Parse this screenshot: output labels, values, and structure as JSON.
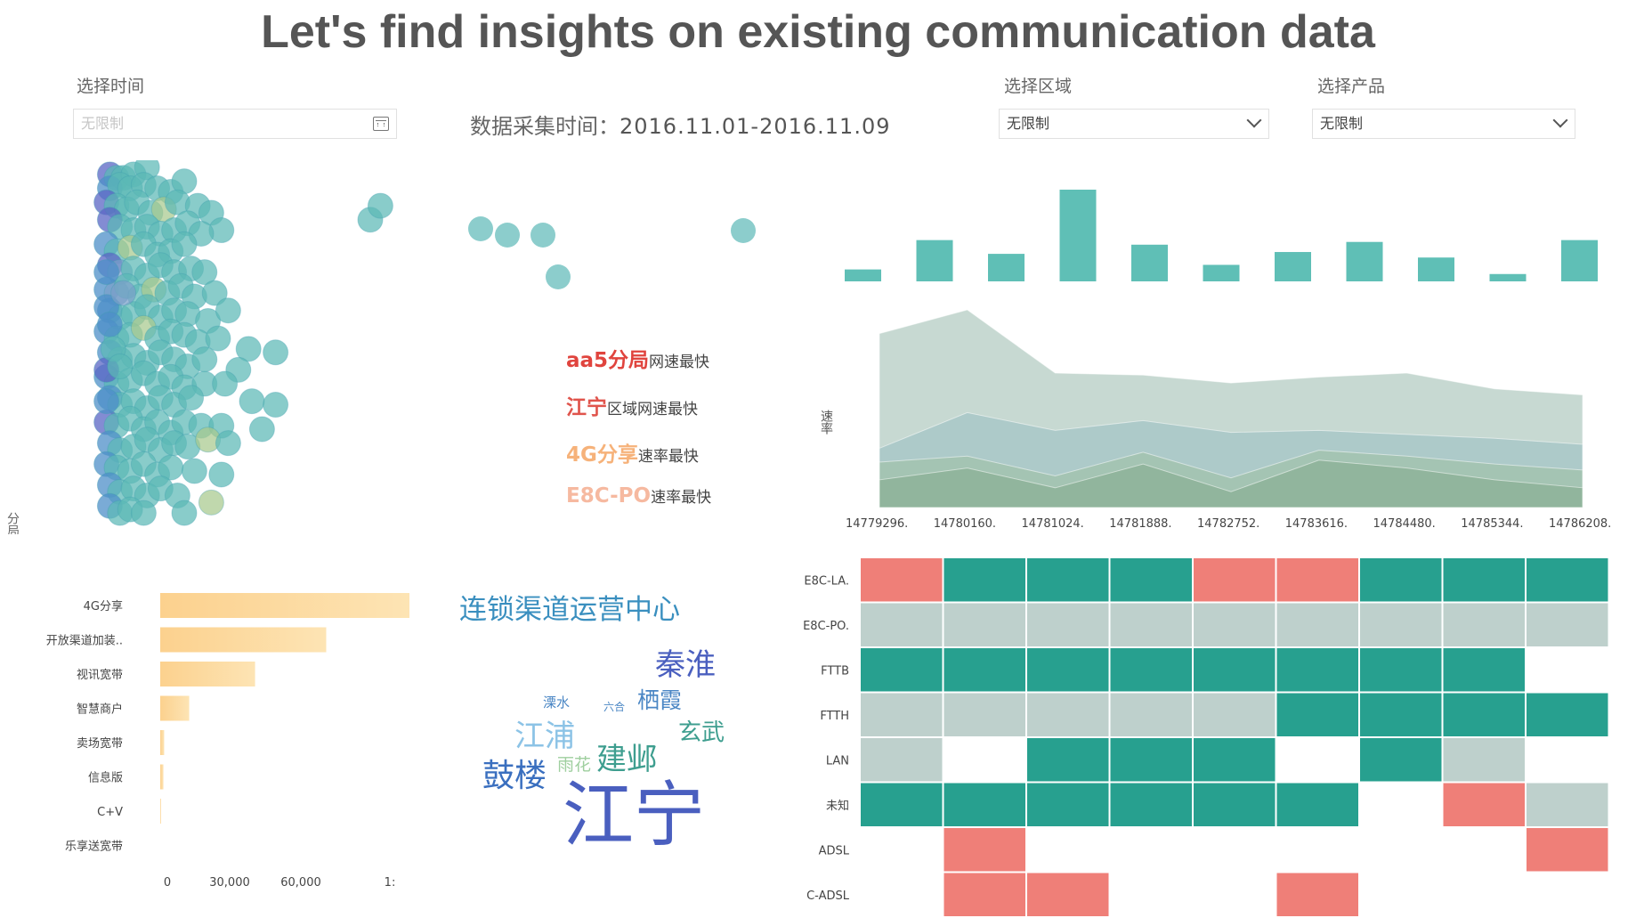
{
  "title": "Let's find insights on existing communication data",
  "controls": {
    "time": {
      "label": "选择时间",
      "placeholder": "无限制"
    },
    "collect_prefix": "数据采集时间：",
    "collect_range": "2016.11.01-2016.11.09",
    "region": {
      "label": "选择区域",
      "value": "无限制"
    },
    "product": {
      "label": "选择产品",
      "value": "无限制"
    }
  },
  "colors": {
    "teal": "#5bb8b6",
    "teal_dark": "#2a9d8f",
    "gray_green": "#c0d3cf",
    "salmon": "#ef7f78",
    "orange_bar": "#fbd59a"
  },
  "insights": [
    {
      "highlight": "aa5分局",
      "text": "网速最快",
      "color": "#e0443e"
    },
    {
      "highlight": "江宁",
      "text": "区域网速最快",
      "color": "#e0544c"
    },
    {
      "highlight": "4G分享",
      "text": "速率最快",
      "color": "#f6b27a"
    },
    {
      "highlight": "E8C-PO",
      "text": "速率最快",
      "color": "#f6b9a0"
    }
  ],
  "chart_data": [
    {
      "type": "scatter",
      "ylabel": "分局",
      "points": [
        [
          0.03,
          0.02
        ],
        [
          0.05,
          0.03
        ],
        [
          0.07,
          0.03
        ],
        [
          0.1,
          0.02
        ],
        [
          0.14,
          0.0
        ],
        [
          0.03,
          0.06
        ],
        [
          0.06,
          0.05
        ],
        [
          0.09,
          0.06
        ],
        [
          0.13,
          0.05
        ],
        [
          0.17,
          0.06
        ],
        [
          0.21,
          0.07
        ],
        [
          0.25,
          0.04
        ],
        [
          0.02,
          0.1
        ],
        [
          0.05,
          0.11
        ],
        [
          0.08,
          0.12
        ],
        [
          0.11,
          0.1
        ],
        [
          0.15,
          0.13
        ],
        [
          0.19,
          0.12
        ],
        [
          0.23,
          0.1
        ],
        [
          0.29,
          0.11
        ],
        [
          0.33,
          0.13
        ],
        [
          0.36,
          0.18
        ],
        [
          0.8,
          0.15
        ],
        [
          0.83,
          0.11
        ],
        [
          0.03,
          0.15
        ],
        [
          0.06,
          0.17
        ],
        [
          0.1,
          0.18
        ],
        [
          0.14,
          0.17
        ],
        [
          0.18,
          0.19
        ],
        [
          0.22,
          0.18
        ],
        [
          0.26,
          0.16
        ],
        [
          0.3,
          0.19
        ],
        [
          0.02,
          0.22
        ],
        [
          0.05,
          0.24
        ],
        [
          0.09,
          0.23
        ],
        [
          0.13,
          0.22
        ],
        [
          0.17,
          0.25
        ],
        [
          0.21,
          0.24
        ],
        [
          0.25,
          0.22
        ],
        [
          0.03,
          0.28
        ],
        [
          0.06,
          0.3
        ],
        [
          0.1,
          0.29
        ],
        [
          0.14,
          0.31
        ],
        [
          0.18,
          0.28
        ],
        [
          0.22,
          0.3
        ],
        [
          0.27,
          0.29
        ],
        [
          0.31,
          0.3
        ],
        [
          0.02,
          0.35
        ],
        [
          0.05,
          0.36
        ],
        [
          0.08,
          0.34
        ],
        [
          0.12,
          0.37
        ],
        [
          0.16,
          0.35
        ],
        [
          0.2,
          0.36
        ],
        [
          0.24,
          0.34
        ],
        [
          0.28,
          0.37
        ],
        [
          0.34,
          0.36
        ],
        [
          0.03,
          0.41
        ],
        [
          0.06,
          0.43
        ],
        [
          0.1,
          0.42
        ],
        [
          0.14,
          0.4
        ],
        [
          0.18,
          0.43
        ],
        [
          0.22,
          0.41
        ],
        [
          0.26,
          0.42
        ],
        [
          0.32,
          0.44
        ],
        [
          0.38,
          0.41
        ],
        [
          0.02,
          0.47
        ],
        [
          0.05,
          0.49
        ],
        [
          0.09,
          0.48
        ],
        [
          0.13,
          0.46
        ],
        [
          0.17,
          0.49
        ],
        [
          0.21,
          0.47
        ],
        [
          0.25,
          0.48
        ],
        [
          0.29,
          0.5
        ],
        [
          0.35,
          0.49
        ],
        [
          0.44,
          0.52
        ],
        [
          0.52,
          0.53
        ],
        [
          0.03,
          0.53
        ],
        [
          0.06,
          0.55
        ],
        [
          0.1,
          0.54
        ],
        [
          0.14,
          0.56
        ],
        [
          0.18,
          0.53
        ],
        [
          0.22,
          0.55
        ],
        [
          0.26,
          0.57
        ],
        [
          0.31,
          0.55
        ],
        [
          0.41,
          0.58
        ],
        [
          0.02,
          0.6
        ],
        [
          0.05,
          0.62
        ],
        [
          0.09,
          0.61
        ],
        [
          0.13,
          0.59
        ],
        [
          0.17,
          0.62
        ],
        [
          0.21,
          0.6
        ],
        [
          0.25,
          0.63
        ],
        [
          0.31,
          0.62
        ],
        [
          0.37,
          0.62
        ],
        [
          0.03,
          0.66
        ],
        [
          0.06,
          0.68
        ],
        [
          0.1,
          0.67
        ],
        [
          0.14,
          0.69
        ],
        [
          0.18,
          0.66
        ],
        [
          0.22,
          0.68
        ],
        [
          0.27,
          0.66
        ],
        [
          0.45,
          0.67
        ],
        [
          0.02,
          0.73
        ],
        [
          0.05,
          0.74
        ],
        [
          0.09,
          0.72
        ],
        [
          0.13,
          0.75
        ],
        [
          0.17,
          0.73
        ],
        [
          0.21,
          0.76
        ],
        [
          0.25,
          0.73
        ],
        [
          0.3,
          0.74
        ],
        [
          0.36,
          0.74
        ],
        [
          0.52,
          0.68
        ],
        [
          0.03,
          0.79
        ],
        [
          0.06,
          0.81
        ],
        [
          0.1,
          0.8
        ],
        [
          0.14,
          0.78
        ],
        [
          0.18,
          0.81
        ],
        [
          0.22,
          0.79
        ],
        [
          0.26,
          0.8
        ],
        [
          0.32,
          0.78
        ],
        [
          0.38,
          0.79
        ],
        [
          0.48,
          0.75
        ],
        [
          0.02,
          0.85
        ],
        [
          0.05,
          0.86
        ],
        [
          0.09,
          0.87
        ],
        [
          0.13,
          0.85
        ],
        [
          0.17,
          0.88
        ],
        [
          0.21,
          0.86
        ],
        [
          0.28,
          0.87
        ],
        [
          0.36,
          0.88
        ],
        [
          0.03,
          0.91
        ],
        [
          0.06,
          0.93
        ],
        [
          0.1,
          0.92
        ],
        [
          0.14,
          0.94
        ],
        [
          0.18,
          0.92
        ],
        [
          0.23,
          0.94
        ],
        [
          0.33,
          0.96
        ],
        [
          0.03,
          0.97
        ],
        [
          0.06,
          0.99
        ],
        [
          0.09,
          0.98
        ],
        [
          0.13,
          0.99
        ],
        [
          0.25,
          0.99
        ],
        [
          0.02,
          0.3
        ],
        [
          0.02,
          0.4
        ],
        [
          0.02,
          0.58
        ],
        [
          0.02,
          0.67
        ],
        [
          0.03,
          0.45
        ],
        [
          0.04,
          0.52
        ],
        [
          0.07,
          0.36
        ],
        [
          0.06,
          0.57
        ]
      ],
      "points_mid": [
        [
          0.12,
          0.45
        ],
        [
          0.88,
          0.15
        ],
        [
          1.0,
          0.05
        ],
        [
          0.3,
          0.3
        ],
        [
          0.74,
          0.3
        ]
      ]
    },
    {
      "type": "bar",
      "values": [
        13,
        45,
        30,
        100,
        40,
        18,
        32,
        43,
        26,
        8,
        45
      ]
    },
    {
      "type": "area",
      "ylabel": "速率",
      "x_ticks": [
        "14779296.",
        "14780160.",
        "14781024.",
        "14781888.",
        "14782752.",
        "14783616.",
        "14784480.",
        "14785344.",
        "14786208."
      ],
      "ylim": [
        0,
        100
      ],
      "series": [
        {
          "values": [
            88,
            100,
            68,
            67,
            63,
            66,
            68,
            60,
            57
          ],
          "color": "#c1d5cd"
        },
        {
          "values": [
            30,
            48,
            39,
            44,
            38,
            39,
            37,
            35,
            32
          ],
          "color": "#9bbfc3"
        },
        {
          "values": [
            23,
            26,
            16,
            28,
            15,
            29,
            26,
            22,
            19
          ],
          "color": "#9fbfa5"
        },
        {
          "values": [
            14,
            20,
            10,
            22,
            8,
            24,
            20,
            14,
            10
          ],
          "color": "#85ac8d"
        }
      ]
    },
    {
      "type": "bar",
      "categories": [
        "4G分享",
        "开放渠道加装..",
        "视讯宽带",
        "智慧商户",
        "卖场宽带",
        "信息版",
        "C+V",
        "乐享送宽带"
      ],
      "values": [
        95000,
        63000,
        36000,
        11000,
        1500,
        1200,
        300,
        0
      ],
      "x_ticks": [
        "0",
        "30,000",
        "60,000",
        "1:"
      ],
      "xlim": [
        0,
        100000
      ]
    },
    {
      "type": "heatmap",
      "rows": [
        "E8C-LA.",
        "E8C-PO.",
        "FTTB",
        "FTTH",
        "LAN",
        "未知",
        "ADSL",
        "C-ADSL"
      ],
      "columns": 9,
      "cells": [
        [
          "r",
          "t",
          "t",
          "t",
          "r",
          "r",
          "t",
          "t",
          "t"
        ],
        [
          "g",
          "g",
          "g",
          "g",
          "g",
          "g",
          "g",
          "g",
          "g"
        ],
        [
          "t",
          "t",
          "t",
          "t",
          "t",
          "t",
          "t",
          "t",
          ""
        ],
        [
          "g",
          "g",
          "g",
          "g",
          "g",
          "t",
          "t",
          "t",
          "t"
        ],
        [
          "g",
          "",
          "t",
          "t",
          "t",
          "",
          "t",
          "g",
          ""
        ],
        [
          "t",
          "t",
          "t",
          "t",
          "t",
          "t",
          "",
          "r",
          "g"
        ],
        [
          "",
          "r",
          "",
          "",
          "",
          "",
          "",
          "",
          "r"
        ],
        [
          "",
          "r",
          "r",
          "",
          "",
          "r",
          "",
          "",
          ""
        ]
      ]
    }
  ],
  "wordcloud": [
    {
      "text": "连锁渠道运营中心",
      "size": 31,
      "color": "#3a8fbf"
    },
    {
      "text": "秦淮",
      "size": 34,
      "color": "#4a5fbf"
    },
    {
      "text": "栖霞",
      "size": 25,
      "color": "#4a86c4"
    },
    {
      "text": "溧水",
      "size": 15,
      "color": "#4a86c4"
    },
    {
      "text": "六合",
      "size": 12,
      "color": "#4a86c4"
    },
    {
      "text": "玄武",
      "size": 26,
      "color": "#3e9e8f"
    },
    {
      "text": "江浦",
      "size": 34,
      "color": "#8cc3e6"
    },
    {
      "text": "雨花",
      "size": 19,
      "color": "#9fcf9f"
    },
    {
      "text": "建邺",
      "size": 34,
      "color": "#3e9e8f"
    },
    {
      "text": "鼓楼",
      "size": 36,
      "color": "#3a6fbf"
    },
    {
      "text": "江宁",
      "size": 80,
      "color": "#4a5fbf"
    }
  ]
}
